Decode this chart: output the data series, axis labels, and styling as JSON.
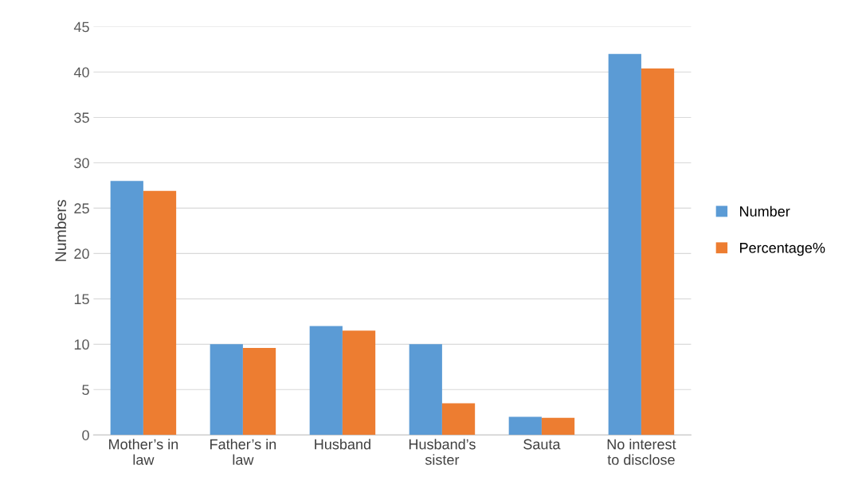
{
  "chart_data": {
    "type": "bar",
    "ylabel": "Numbers",
    "categories": [
      "Mother’s in\nlaw",
      "Father’s in\nlaw",
      "Husband",
      "Husband’s\nsister",
      "Sauta",
      "No interest\nto disclose"
    ],
    "series": [
      {
        "name": "Number",
        "color": "#5b9bd5",
        "values": [
          28,
          10,
          12,
          10,
          2,
          42
        ]
      },
      {
        "name": "Percentage%",
        "color": "#ed7d31",
        "values": [
          26.9,
          9.6,
          11.5,
          3.5,
          1.9,
          40.4
        ]
      }
    ],
    "ylim": [
      0,
      45
    ],
    "yticks": [
      0,
      5,
      10,
      15,
      20,
      25,
      30,
      35,
      40,
      45
    ],
    "grid": "y",
    "legend": "right"
  }
}
